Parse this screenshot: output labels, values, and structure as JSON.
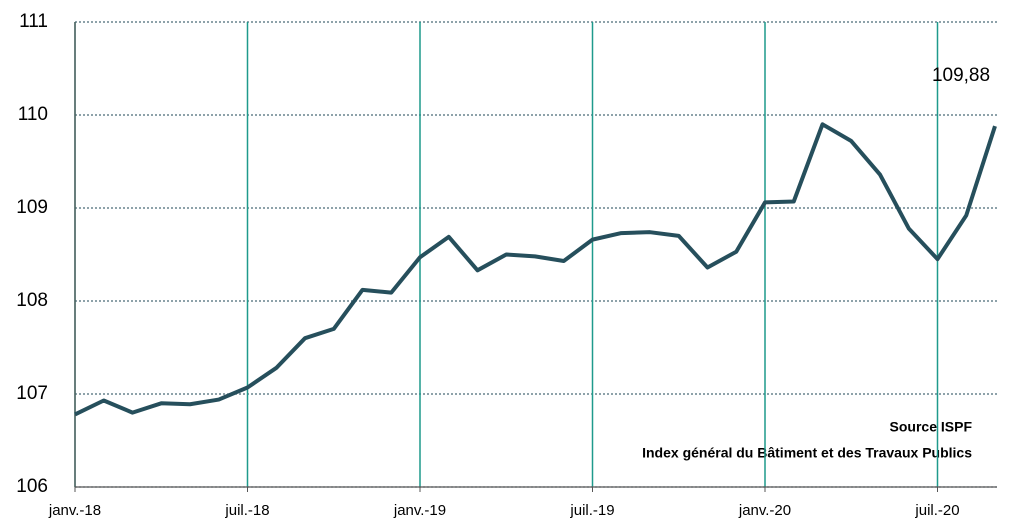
{
  "chart_data": {
    "type": "line",
    "categories": [
      "janv.-18",
      null,
      null,
      null,
      null,
      null,
      "juil.-18",
      null,
      null,
      null,
      null,
      null,
      "janv.-19",
      null,
      null,
      null,
      null,
      null,
      "juil.-19",
      null,
      null,
      null,
      null,
      null,
      "janv.-20",
      null,
      null,
      null,
      null,
      null,
      "juil.-20",
      null,
      null
    ],
    "values": [
      106.78,
      106.93,
      106.8,
      106.9,
      106.89,
      106.94,
      107.07,
      107.28,
      107.6,
      107.7,
      108.12,
      108.09,
      108.47,
      108.69,
      108.33,
      108.5,
      108.48,
      108.43,
      108.66,
      108.73,
      108.74,
      108.7,
      108.36,
      108.53,
      109.06,
      109.07,
      109.9,
      109.72,
      109.36,
      108.78,
      108.45,
      108.92,
      109.88
    ],
    "value_labels": [
      null,
      null,
      null,
      null,
      null,
      null,
      null,
      null,
      null,
      null,
      null,
      null,
      null,
      null,
      null,
      null,
      null,
      null,
      null,
      null,
      null,
      null,
      null,
      null,
      null,
      null,
      null,
      null,
      null,
      null,
      null,
      null,
      "109,88"
    ],
    "color": "#264f5c",
    "vgrid_color": "#1f9a8c",
    "ylim": [
      106,
      111
    ],
    "yticks": [
      106,
      107,
      108,
      109,
      110,
      111
    ],
    "grid": true,
    "source": "Source ISPF",
    "note": "Index général du Bâtiment et des Travaux Publics"
  }
}
